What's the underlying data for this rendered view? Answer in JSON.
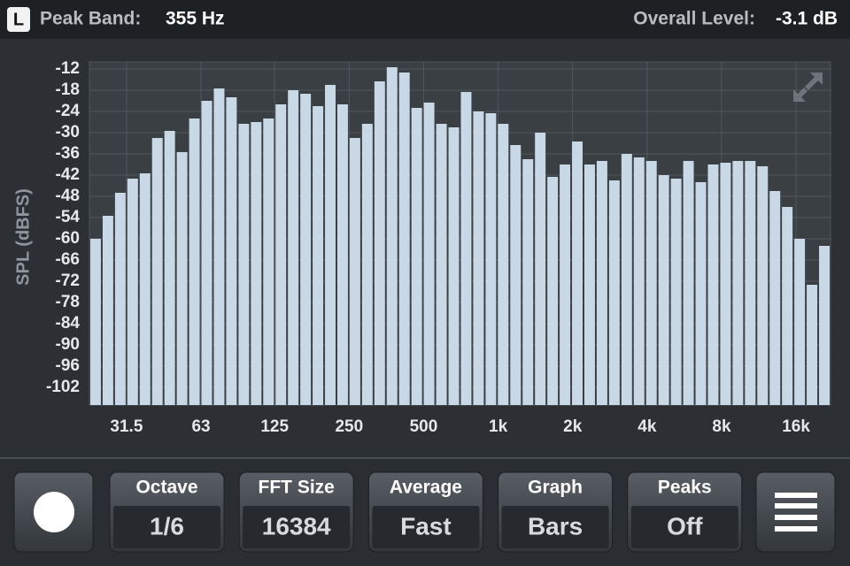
{
  "header": {
    "channel": "L",
    "peak_label": "Peak Band:",
    "peak_value": "355 Hz",
    "level_label": "Overall Level:",
    "level_value": "-3.1 dB"
  },
  "chart_data": {
    "type": "bar",
    "ylabel": "SPL (dBFS)",
    "categories": [
      null,
      null,
      null,
      null,
      null,
      null,
      null,
      null,
      null,
      null,
      null,
      null,
      null,
      null,
      null,
      null,
      null,
      null,
      null,
      null,
      null,
      null,
      null,
      null,
      null,
      null,
      null,
      null,
      null,
      null,
      null,
      null,
      null,
      null,
      null,
      null,
      null,
      null,
      null,
      null,
      null,
      null,
      null,
      null,
      null,
      null,
      null,
      null,
      null,
      null,
      null,
      null,
      null,
      null,
      null,
      null,
      null,
      null,
      null,
      null
    ],
    "values": [
      -60,
      -53.5,
      -47,
      -43,
      -41.5,
      -31.5,
      -29.5,
      -35.5,
      -26,
      -21,
      -17.5,
      -20,
      -27.5,
      -27,
      -26,
      -22,
      -18,
      -19,
      -22.5,
      -16.5,
      -22,
      -31.5,
      -27.5,
      -15.5,
      -11.5,
      -13,
      -23,
      -21.5,
      -27.5,
      -28.5,
      -18.5,
      -24,
      -24.5,
      -27.5,
      -33.5,
      -37.5,
      -30,
      -42.5,
      -39,
      -32.5,
      -39,
      -38,
      -43.5,
      -36,
      -37,
      -38,
      -42,
      -43,
      -38,
      -44,
      -39,
      -38.5,
      -38,
      -38,
      -39.5,
      -46.5,
      -51,
      -60,
      -73,
      -62
    ],
    "color": "#c9d8e7",
    "ylim": [
      -107,
      -10
    ],
    "yticks": [
      -12,
      -18,
      -24,
      -30,
      -36,
      -42,
      -48,
      -54,
      -60,
      -66,
      -72,
      -78,
      -84,
      -90,
      -96,
      -102
    ],
    "xscale": "log",
    "xlim": [
      22.3,
      22050
    ],
    "xticks": [
      31.5,
      63,
      125,
      250,
      500,
      {
        "value": 1000,
        "label": "1k"
      },
      {
        "value": 2000,
        "label": "2k"
      },
      {
        "value": 4000,
        "label": "4k"
      },
      {
        "value": 8000,
        "label": "8k"
      },
      {
        "value": 16000,
        "label": "16k"
      }
    ],
    "grid": true
  },
  "controls": [
    {
      "label": "Octave",
      "value": "1/6"
    },
    {
      "label": "FFT Size",
      "value": "16384"
    },
    {
      "label": "Average",
      "value": "Fast"
    },
    {
      "label": "Graph",
      "value": "Bars"
    },
    {
      "label": "Peaks",
      "value": "Off"
    }
  ]
}
